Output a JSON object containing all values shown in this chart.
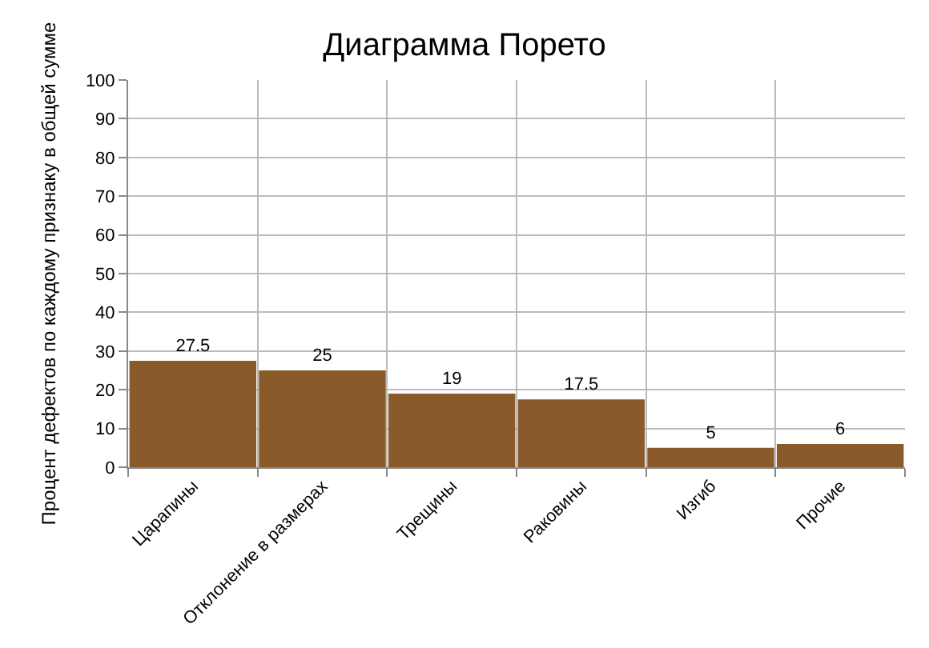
{
  "chart_data": {
    "type": "bar",
    "title": "Диаграмма Порето",
    "ylabel": "Процент дефектов по каждому признаку в общей сумме",
    "categories": [
      "Царапины",
      "Отклонение в размерах",
      "Трещины",
      "Раковины",
      "Изгиб",
      "Прочие"
    ],
    "values": [
      27.5,
      25,
      19,
      17.5,
      5,
      6
    ],
    "color": "#8b5a2b",
    "ylim": [
      0,
      100
    ],
    "yticks": [
      0,
      10,
      20,
      30,
      40,
      50,
      60,
      70,
      80,
      90,
      100
    ],
    "grid": true,
    "data_labels": true
  }
}
